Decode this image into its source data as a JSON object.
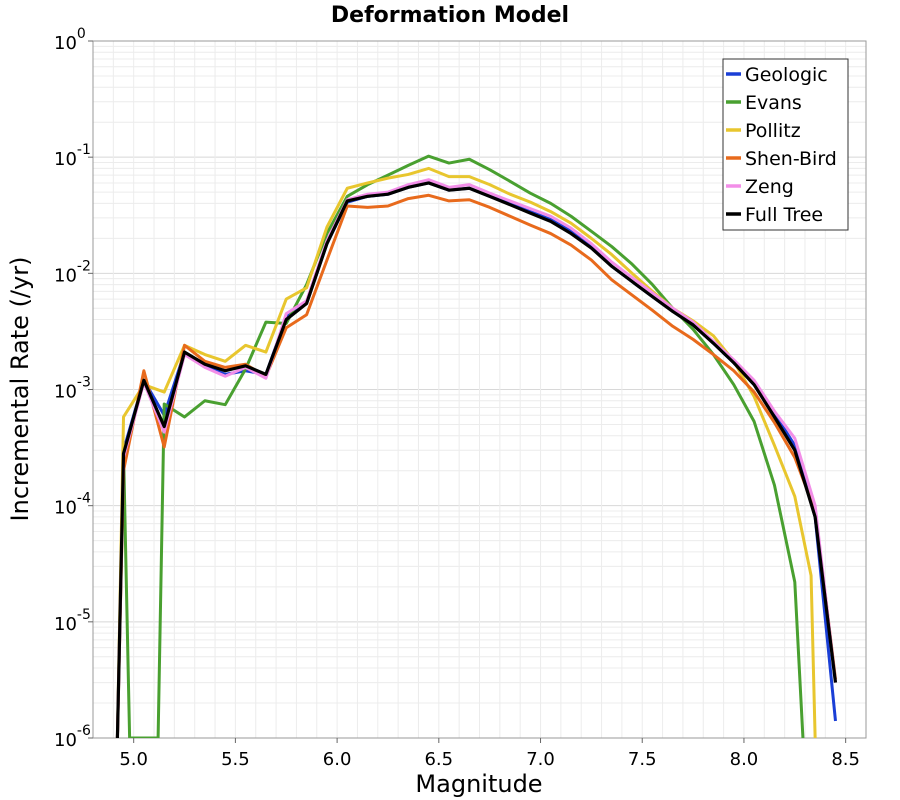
{
  "chart_data": {
    "type": "line",
    "title": "Deformation Model",
    "xlabel": "Magnitude",
    "ylabel": "Incremental Rate (/yr)",
    "xlim": [
      4.8,
      8.6
    ],
    "ylim": [
      1e-06,
      1
    ],
    "yscale": "log",
    "x_ticks": [
      "5.0",
      "5.5",
      "6.0",
      "6.5",
      "7.0",
      "7.5",
      "8.0",
      "8.5"
    ],
    "y_ticks": [
      {
        "base": "10",
        "exp": "0"
      },
      {
        "base": "10",
        "exp": "-1"
      },
      {
        "base": "10",
        "exp": "-2"
      },
      {
        "base": "10",
        "exp": "-3"
      },
      {
        "base": "10",
        "exp": "-4"
      },
      {
        "base": "10",
        "exp": "-5"
      },
      {
        "base": "10",
        "exp": "-6"
      }
    ],
    "grid": true,
    "legend_position": "top-right",
    "series": [
      {
        "name": "Geologic",
        "color": "#1a3fd6",
        "points": [
          [
            4.92,
            1e-06
          ],
          [
            4.95,
            0.0003
          ],
          [
            5.05,
            0.0012
          ],
          [
            5.15,
            0.0006
          ],
          [
            5.25,
            0.0021
          ],
          [
            5.35,
            0.0016
          ],
          [
            5.45,
            0.00135
          ],
          [
            5.55,
            0.00145
          ],
          [
            5.65,
            0.00135
          ],
          [
            5.75,
            0.0042
          ],
          [
            5.85,
            0.0055
          ],
          [
            5.95,
            0.018
          ],
          [
            6.05,
            0.041
          ],
          [
            6.15,
            0.046
          ],
          [
            6.25,
            0.048
          ],
          [
            6.35,
            0.055
          ],
          [
            6.45,
            0.06
          ],
          [
            6.55,
            0.052
          ],
          [
            6.65,
            0.054
          ],
          [
            6.75,
            0.046
          ],
          [
            6.85,
            0.04
          ],
          [
            6.95,
            0.034
          ],
          [
            7.05,
            0.029
          ],
          [
            7.15,
            0.023
          ],
          [
            7.25,
            0.017
          ],
          [
            7.35,
            0.0115
          ],
          [
            7.45,
            0.0085
          ],
          [
            7.55,
            0.0063
          ],
          [
            7.65,
            0.0047
          ],
          [
            7.75,
            0.0036
          ],
          [
            7.85,
            0.0025
          ],
          [
            7.95,
            0.0017
          ],
          [
            8.05,
            0.0011
          ],
          [
            8.15,
            0.00062
          ],
          [
            8.25,
            0.00033
          ],
          [
            8.35,
            8e-05
          ],
          [
            8.45,
            1.4e-06
          ]
        ]
      },
      {
        "name": "Evans",
        "color": "#49a030",
        "points": [
          [
            4.95,
            0.0003
          ],
          [
            4.98,
            1e-06
          ],
          [
            5.12,
            1e-06
          ],
          [
            5.15,
            0.00075
          ],
          [
            5.25,
            0.00058
          ],
          [
            5.35,
            0.0008
          ],
          [
            5.45,
            0.00074
          ],
          [
            5.55,
            0.0015
          ],
          [
            5.65,
            0.0038
          ],
          [
            5.75,
            0.0037
          ],
          [
            5.85,
            0.008
          ],
          [
            5.95,
            0.022
          ],
          [
            6.05,
            0.046
          ],
          [
            6.15,
            0.058
          ],
          [
            6.25,
            0.07
          ],
          [
            6.35,
            0.085
          ],
          [
            6.45,
            0.102
          ],
          [
            6.55,
            0.089
          ],
          [
            6.65,
            0.096
          ],
          [
            6.75,
            0.078
          ],
          [
            6.85,
            0.062
          ],
          [
            6.95,
            0.049
          ],
          [
            7.05,
            0.04
          ],
          [
            7.15,
            0.031
          ],
          [
            7.25,
            0.023
          ],
          [
            7.35,
            0.017
          ],
          [
            7.45,
            0.012
          ],
          [
            7.55,
            0.008
          ],
          [
            7.65,
            0.005
          ],
          [
            7.75,
            0.0033
          ],
          [
            7.85,
            0.002
          ],
          [
            7.95,
            0.0011
          ],
          [
            8.05,
            0.00053
          ],
          [
            8.15,
            0.00015
          ],
          [
            8.25,
            2.2e-05
          ],
          [
            8.29,
            1e-06
          ]
        ]
      },
      {
        "name": "Pollitz",
        "color": "#e8c62e",
        "points": [
          [
            4.92,
            1e-06
          ],
          [
            4.95,
            0.00058
          ],
          [
            5.05,
            0.0011
          ],
          [
            5.15,
            0.00095
          ],
          [
            5.25,
            0.0024
          ],
          [
            5.35,
            0.002
          ],
          [
            5.45,
            0.00175
          ],
          [
            5.55,
            0.0024
          ],
          [
            5.65,
            0.0021
          ],
          [
            5.75,
            0.006
          ],
          [
            5.85,
            0.0075
          ],
          [
            5.95,
            0.025
          ],
          [
            6.05,
            0.054
          ],
          [
            6.15,
            0.06
          ],
          [
            6.25,
            0.066
          ],
          [
            6.35,
            0.071
          ],
          [
            6.45,
            0.08
          ],
          [
            6.55,
            0.068
          ],
          [
            6.65,
            0.068
          ],
          [
            6.75,
            0.058
          ],
          [
            6.85,
            0.048
          ],
          [
            6.95,
            0.041
          ],
          [
            7.05,
            0.034
          ],
          [
            7.15,
            0.027
          ],
          [
            7.25,
            0.02
          ],
          [
            7.35,
            0.0145
          ],
          [
            7.45,
            0.01
          ],
          [
            7.55,
            0.007
          ],
          [
            7.65,
            0.005
          ],
          [
            7.75,
            0.0039
          ],
          [
            7.85,
            0.0029
          ],
          [
            7.95,
            0.00175
          ],
          [
            8.05,
            0.00087
          ],
          [
            8.15,
            0.00033
          ],
          [
            8.25,
            0.00012
          ],
          [
            8.33,
            2.5e-05
          ],
          [
            8.35,
            1e-06
          ]
        ]
      },
      {
        "name": "Shen-Bird",
        "color": "#e86a1c",
        "points": [
          [
            4.92,
            1e-06
          ],
          [
            4.95,
            0.0002
          ],
          [
            5.05,
            0.00145
          ],
          [
            5.15,
            0.00032
          ],
          [
            5.25,
            0.0024
          ],
          [
            5.35,
            0.00175
          ],
          [
            5.45,
            0.00155
          ],
          [
            5.55,
            0.00165
          ],
          [
            5.65,
            0.0013
          ],
          [
            5.75,
            0.0034
          ],
          [
            5.85,
            0.0044
          ],
          [
            5.95,
            0.013
          ],
          [
            6.05,
            0.038
          ],
          [
            6.15,
            0.037
          ],
          [
            6.25,
            0.038
          ],
          [
            6.35,
            0.044
          ],
          [
            6.45,
            0.047
          ],
          [
            6.55,
            0.042
          ],
          [
            6.65,
            0.043
          ],
          [
            6.75,
            0.037
          ],
          [
            6.85,
            0.031
          ],
          [
            6.95,
            0.026
          ],
          [
            7.05,
            0.022
          ],
          [
            7.15,
            0.0175
          ],
          [
            7.25,
            0.013
          ],
          [
            7.35,
            0.0088
          ],
          [
            7.45,
            0.0065
          ],
          [
            7.55,
            0.0048
          ],
          [
            7.65,
            0.0035
          ],
          [
            7.75,
            0.0027
          ],
          [
            7.85,
            0.002
          ],
          [
            7.95,
            0.00145
          ],
          [
            8.05,
            0.00095
          ],
          [
            8.15,
            0.00052
          ],
          [
            8.25,
            0.00026
          ],
          [
            8.35,
            9e-05
          ],
          [
            8.45,
            3.2e-06
          ]
        ]
      },
      {
        "name": "Zeng",
        "color": "#f28ee8",
        "points": [
          [
            4.92,
            1e-06
          ],
          [
            4.95,
            0.00026
          ],
          [
            5.05,
            0.00115
          ],
          [
            5.15,
            0.00043
          ],
          [
            5.25,
            0.002
          ],
          [
            5.35,
            0.00155
          ],
          [
            5.45,
            0.0013
          ],
          [
            5.55,
            0.00155
          ],
          [
            5.65,
            0.00125
          ],
          [
            5.75,
            0.0045
          ],
          [
            5.85,
            0.0058
          ],
          [
            5.95,
            0.019
          ],
          [
            6.05,
            0.043
          ],
          [
            6.15,
            0.048
          ],
          [
            6.25,
            0.05
          ],
          [
            6.35,
            0.058
          ],
          [
            6.45,
            0.064
          ],
          [
            6.55,
            0.055
          ],
          [
            6.65,
            0.058
          ],
          [
            6.75,
            0.049
          ],
          [
            6.85,
            0.042
          ],
          [
            6.95,
            0.036
          ],
          [
            7.05,
            0.031
          ],
          [
            7.15,
            0.0245
          ],
          [
            7.25,
            0.018
          ],
          [
            7.35,
            0.0125
          ],
          [
            7.45,
            0.0092
          ],
          [
            7.55,
            0.0068
          ],
          [
            7.65,
            0.005
          ],
          [
            7.75,
            0.0038
          ],
          [
            7.85,
            0.0026
          ],
          [
            7.95,
            0.0018
          ],
          [
            8.05,
            0.0012
          ],
          [
            8.15,
            0.00065
          ],
          [
            8.25,
            0.00038
          ],
          [
            8.35,
            0.0001
          ],
          [
            8.45,
            3e-06
          ]
        ]
      },
      {
        "name": "Full Tree",
        "color": "#000000",
        "points": [
          [
            4.92,
            1e-06
          ],
          [
            4.95,
            0.00028
          ],
          [
            5.05,
            0.0012
          ],
          [
            5.15,
            0.00048
          ],
          [
            5.25,
            0.0021
          ],
          [
            5.35,
            0.00165
          ],
          [
            5.45,
            0.00145
          ],
          [
            5.55,
            0.0016
          ],
          [
            5.65,
            0.00135
          ],
          [
            5.75,
            0.004
          ],
          [
            5.85,
            0.0055
          ],
          [
            5.95,
            0.018
          ],
          [
            6.05,
            0.042
          ],
          [
            6.15,
            0.046
          ],
          [
            6.25,
            0.048
          ],
          [
            6.35,
            0.055
          ],
          [
            6.45,
            0.06
          ],
          [
            6.55,
            0.052
          ],
          [
            6.65,
            0.054
          ],
          [
            6.75,
            0.046
          ],
          [
            6.85,
            0.039
          ],
          [
            6.95,
            0.033
          ],
          [
            7.05,
            0.028
          ],
          [
            7.15,
            0.022
          ],
          [
            7.25,
            0.0165
          ],
          [
            7.35,
            0.0115
          ],
          [
            7.45,
            0.0085
          ],
          [
            7.55,
            0.0063
          ],
          [
            7.65,
            0.0047
          ],
          [
            7.75,
            0.0036
          ],
          [
            7.85,
            0.0025
          ],
          [
            7.95,
            0.0017
          ],
          [
            8.05,
            0.0011
          ],
          [
            8.15,
            0.00058
          ],
          [
            8.25,
            0.0003
          ],
          [
            8.35,
            8e-05
          ],
          [
            8.45,
            3e-06
          ]
        ]
      }
    ]
  }
}
